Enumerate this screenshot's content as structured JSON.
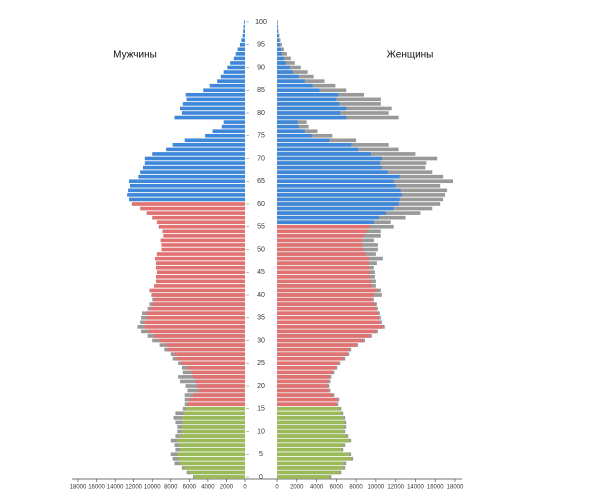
{
  "chart_data": {
    "type": "pyramid",
    "left_title": "Мужчины",
    "right_title": "Женщины",
    "xlim": [
      0,
      18000
    ],
    "xticks": [
      0,
      2000,
      4000,
      6000,
      8000,
      10000,
      12000,
      14000,
      16000,
      18000
    ],
    "ylim": [
      0,
      100
    ],
    "yticks": [
      0,
      5,
      10,
      15,
      20,
      25,
      30,
      35,
      40,
      45,
      50,
      55,
      60,
      65,
      70,
      75,
      80,
      85,
      90,
      95,
      100
    ],
    "series": [
      {
        "side": "left",
        "color": "#999999",
        "x": [
          0,
          1,
          2,
          3,
          4,
          5,
          6,
          7,
          8,
          9,
          10,
          11,
          12,
          13,
          14,
          15,
          16,
          17,
          18,
          19,
          20,
          21,
          22,
          23,
          24,
          25,
          26,
          27,
          28,
          29,
          30,
          31,
          32,
          33,
          34,
          35,
          36,
          37,
          38,
          39,
          40
        ],
        "values": [
          5600,
          6300,
          6800,
          7600,
          7800,
          8000,
          7500,
          7600,
          8000,
          7500,
          7300,
          7300,
          7500,
          7700,
          7500,
          6700,
          6500,
          6500,
          6500,
          6200,
          6400,
          7000,
          7200,
          6700,
          6800,
          7200,
          7800,
          8000,
          8700,
          9200,
          10000,
          10500,
          11200,
          11600,
          11300,
          11200,
          11100,
          10500,
          10300,
          10000,
          10100
        ]
      },
      {
        "side": "left",
        "color": "#9bbb59",
        "x": [
          0,
          1,
          2,
          3,
          4,
          5,
          6,
          7,
          8,
          9,
          10,
          11,
          12,
          13,
          14,
          15
        ],
        "values": [
          5500,
          6000,
          6500,
          7000,
          7200,
          7300,
          7000,
          7100,
          7300,
          7000,
          6800,
          6800,
          6700,
          6800,
          6600,
          6300
        ]
      },
      {
        "side": "left",
        "color": "#e07272",
        "x": [
          16,
          17,
          18,
          19,
          20,
          21,
          22,
          23,
          24,
          25,
          26,
          27,
          28,
          29,
          30,
          31,
          32,
          33,
          34,
          35,
          36,
          37,
          38,
          39,
          40,
          41,
          42,
          43,
          44,
          45,
          46,
          47,
          48,
          49,
          50,
          51,
          52,
          53,
          54,
          55,
          56,
          57,
          58,
          59,
          60
        ],
        "values": [
          6200,
          6000,
          5600,
          5000,
          5200,
          5300,
          5600,
          5800,
          6200,
          6800,
          7300,
          7600,
          8300,
          8500,
          9200,
          9800,
          10400,
          10800,
          10800,
          10600,
          10600,
          10200,
          10000,
          9800,
          10000,
          10300,
          9800,
          9600,
          9600,
          9500,
          9600,
          9600,
          9700,
          9500,
          9000,
          9000,
          9100,
          8800,
          8900,
          9300,
          9500,
          10000,
          10600,
          11300,
          12200
        ]
      },
      {
        "side": "left",
        "color": "#3f87d8",
        "x": [
          61,
          62,
          63,
          64,
          65,
          66,
          67,
          68,
          69,
          70,
          71,
          72,
          73,
          74,
          75,
          76,
          77,
          78,
          79,
          80,
          81,
          82,
          83,
          84,
          85,
          86,
          87,
          88,
          89,
          90,
          91,
          92,
          93,
          94,
          95,
          96,
          97,
          98,
          99,
          100
        ],
        "values": [
          12500,
          12700,
          12600,
          12400,
          12500,
          11500,
          11300,
          11000,
          10800,
          10800,
          10000,
          8500,
          7800,
          6500,
          4300,
          3500,
          2500,
          2300,
          7600,
          6800,
          7000,
          6700,
          6300,
          6400,
          4500,
          3800,
          3000,
          2600,
          2300,
          1900,
          1600,
          1200,
          1000,
          800,
          550,
          400,
          250,
          200,
          150,
          100
        ]
      },
      {
        "side": "right",
        "color": "#999999",
        "x": [
          0,
          1,
          2,
          3,
          4,
          5,
          6,
          7,
          8,
          9,
          10,
          11,
          12,
          13,
          14,
          15,
          16,
          17,
          18,
          19,
          20,
          21,
          22,
          23,
          24,
          25,
          26,
          27,
          28,
          29,
          30,
          31,
          32,
          33,
          34,
          35,
          36,
          37,
          38,
          39,
          40,
          41,
          42,
          43,
          44,
          45,
          46,
          47,
          48,
          49,
          50,
          51,
          52,
          53,
          54,
          55,
          56,
          57,
          58,
          59,
          60,
          61,
          62,
          63,
          64,
          65,
          66,
          67,
          68,
          69,
          70,
          71,
          72,
          73,
          74,
          75,
          76,
          77,
          78,
          79,
          80,
          81,
          82,
          83,
          84,
          85,
          86,
          87,
          88,
          89,
          90,
          91,
          92,
          93,
          94,
          95,
          96,
          97,
          98,
          99,
          100
        ],
        "values": [
          5500,
          6500,
          6900,
          7000,
          7700,
          7500,
          6700,
          6900,
          7500,
          7200,
          6900,
          7000,
          7000,
          6900,
          6700,
          6500,
          6200,
          6300,
          5800,
          5400,
          5300,
          5400,
          5500,
          5800,
          6100,
          6400,
          6900,
          7300,
          7500,
          8200,
          8900,
          9600,
          10200,
          10900,
          10600,
          10500,
          10400,
          10200,
          10100,
          9800,
          10600,
          10500,
          10000,
          10000,
          9900,
          9900,
          9800,
          10100,
          10700,
          10000,
          10200,
          10200,
          9800,
          10500,
          10500,
          11800,
          11500,
          13000,
          14500,
          15700,
          16500,
          16800,
          17000,
          17200,
          16500,
          17800,
          16800,
          15700,
          15000,
          15100,
          16200,
          14000,
          12300,
          11300,
          8000,
          5600,
          4100,
          3200,
          3000,
          12300,
          11300,
          11600,
          10500,
          10500,
          8800,
          7000,
          5900,
          4800,
          3700,
          3100,
          2400,
          1800,
          1400,
          1000,
          700,
          500,
          350,
          250,
          150,
          100,
          70
        ]
      },
      {
        "side": "right",
        "color": "#9bbb59",
        "x": [
          0,
          1,
          2,
          3,
          4,
          5,
          6,
          7,
          8,
          9,
          10,
          11,
          12,
          13,
          14,
          15
        ],
        "values": [
          5300,
          6300,
          6700,
          6700,
          7500,
          7300,
          6500,
          6700,
          7300,
          7000,
          6700,
          6800,
          6800,
          6700,
          6500,
          6300
        ]
      },
      {
        "side": "right",
        "color": "#e07272",
        "x": [
          16,
          17,
          18,
          19,
          20,
          21,
          22,
          23,
          24,
          25,
          26,
          27,
          28,
          29,
          30,
          31,
          32,
          33,
          34,
          35,
          36,
          37,
          38,
          39,
          40,
          41,
          42,
          43,
          44,
          45,
          46,
          47,
          48,
          49,
          50,
          51,
          52,
          53,
          54,
          55
        ],
        "values": [
          6000,
          6100,
          5600,
          5200,
          5100,
          5200,
          5300,
          5600,
          5900,
          6200,
          6700,
          7100,
          7300,
          8000,
          8700,
          9400,
          10000,
          10700,
          10400,
          10300,
          10200,
          10000,
          9900,
          9600,
          9800,
          10100,
          9600,
          9500,
          9400,
          9400,
          9300,
          9300,
          9300,
          9000,
          8700,
          8600,
          8600,
          8800,
          9100,
          9400
        ]
      },
      {
        "side": "right",
        "color": "#3f87d8",
        "x": [
          56,
          57,
          58,
          59,
          60,
          61,
          62,
          63,
          64,
          65,
          66,
          67,
          68,
          69,
          70,
          71,
          72,
          73,
          74,
          75,
          76,
          77,
          78,
          79,
          80,
          81,
          82,
          83,
          84,
          85,
          86,
          87,
          88,
          89,
          90,
          91,
          92,
          93,
          94,
          95,
          96,
          97,
          98,
          99,
          100
        ],
        "values": [
          9800,
          10300,
          11000,
          11800,
          12300,
          12400,
          12600,
          12500,
          12000,
          11800,
          12400,
          11200,
          10600,
          10400,
          10600,
          9500,
          8200,
          7500,
          5300,
          3500,
          2800,
          2200,
          2100,
          7000,
          6400,
          7000,
          6300,
          6000,
          6200,
          4300,
          3600,
          2800,
          2200,
          1600,
          1300,
          900,
          700,
          500,
          400,
          300,
          200,
          150,
          100,
          80,
          50
        ]
      }
    ]
  }
}
